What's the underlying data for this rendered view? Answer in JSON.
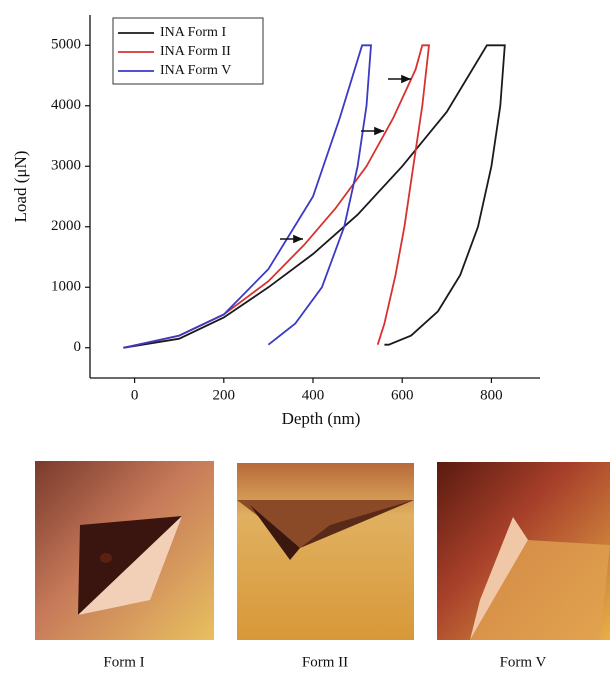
{
  "chart_data": {
    "type": "line",
    "xlabel": "Depth (nm)",
    "ylabel": "Load (μN)",
    "xlim": [
      -100,
      900
    ],
    "ylim": [
      -500,
      5500
    ],
    "xticks": [
      0,
      200,
      400,
      600,
      800
    ],
    "yticks": [
      0,
      1000,
      2000,
      3000,
      4000,
      5000
    ],
    "legend": "upper left",
    "series": [
      {
        "name": "INA Form I",
        "color": "#1a1a1a",
        "x": [
          -25,
          100,
          200,
          300,
          400,
          500,
          600,
          700,
          790,
          830,
          820,
          800,
          770,
          730,
          680,
          620,
          570,
          560
        ],
        "values": [
          0,
          150,
          500,
          1000,
          1550,
          2200,
          3000,
          3900,
          5000,
          5000,
          4000,
          3000,
          2000,
          1200,
          600,
          200,
          50,
          50
        ]
      },
      {
        "name": "INA Form II",
        "color": "#d8322f",
        "x": [
          -25,
          100,
          200,
          300,
          380,
          450,
          520,
          580,
          630,
          645,
          660,
          645,
          625,
          605,
          585,
          560,
          545
        ],
        "values": [
          0,
          200,
          550,
          1100,
          1700,
          2300,
          3000,
          3800,
          4600,
          5000,
          5000,
          4000,
          3000,
          2000,
          1200,
          400,
          50
        ]
      },
      {
        "name": "INA Form V",
        "color": "#3a3ac4",
        "x": [
          -25,
          100,
          200,
          300,
          400,
          460,
          510,
          530,
          520,
          500,
          470,
          420,
          360,
          300
        ],
        "values": [
          0,
          200,
          550,
          1300,
          2500,
          3800,
          5000,
          5000,
          4000,
          3000,
          2000,
          1000,
          400,
          50
        ]
      }
    ]
  },
  "panels": [
    {
      "caption": "Form I"
    },
    {
      "caption": "Form II"
    },
    {
      "caption": "Form V"
    }
  ]
}
